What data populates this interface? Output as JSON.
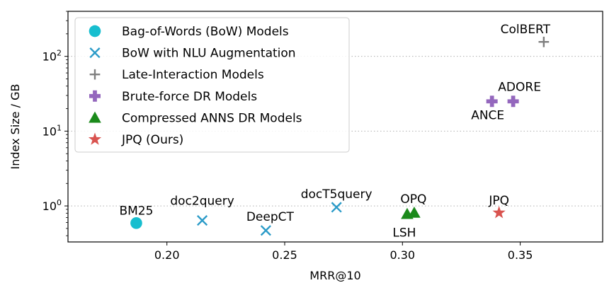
{
  "chart_data": {
    "type": "scatter",
    "xlabel": "MRR@10",
    "ylabel": "Index Size / GB",
    "xlim": [
      0.158,
      0.385
    ],
    "ylim": [
      0.33,
      400
    ],
    "yscale": "log",
    "xticks": [
      {
        "value": 0.2,
        "label": "0.20"
      },
      {
        "value": 0.25,
        "label": "0.25"
      },
      {
        "value": 0.3,
        "label": "0.30"
      },
      {
        "value": 0.35,
        "label": "0.35"
      }
    ],
    "yticks": [
      {
        "value": 1,
        "base": "10",
        "exp": "0"
      },
      {
        "value": 10,
        "base": "10",
        "exp": "1"
      },
      {
        "value": 100,
        "base": "10",
        "exp": "2"
      }
    ],
    "grid": "horizontal dotted at major y ticks",
    "legend_position": "upper-left",
    "series": [
      {
        "name": "Bag-of-Words (BoW) Models",
        "marker": "circle",
        "color": "#17becf",
        "points": [
          {
            "label": "BM25",
            "x": 0.187,
            "y": 0.59
          }
        ]
      },
      {
        "name": "BoW with NLU Augmentation",
        "marker": "x",
        "color": "#2b9bc8",
        "points": [
          {
            "label": "doc2query",
            "x": 0.215,
            "y": 0.64
          },
          {
            "label": "DeepCT",
            "x": 0.242,
            "y": 0.47
          },
          {
            "label": "docT5query",
            "x": 0.272,
            "y": 0.96
          }
        ]
      },
      {
        "name": "Late-Interaction Models",
        "marker": "plus",
        "color": "#7f7f7f",
        "points": [
          {
            "label": "ColBERT",
            "x": 0.36,
            "y": 156
          }
        ]
      },
      {
        "name": "Brute-force DR Models",
        "marker": "P",
        "color": "#9467bd",
        "points": [
          {
            "label": "ANCE",
            "x": 0.338,
            "y": 25
          },
          {
            "label": "ADORE",
            "x": 0.347,
            "y": 25
          }
        ]
      },
      {
        "name": "Compressed ANNS DR Models",
        "marker": "triangle",
        "color": "#1b8a1b",
        "points": [
          {
            "label": "LSH",
            "x": 0.302,
            "y": 0.78
          },
          {
            "label": "OPQ",
            "x": 0.305,
            "y": 0.81
          }
        ]
      },
      {
        "name": "JPQ (Ours)",
        "marker": "star",
        "color": "#d9534f",
        "points": [
          {
            "label": "JPQ",
            "x": 0.341,
            "y": 0.81
          }
        ]
      }
    ]
  }
}
